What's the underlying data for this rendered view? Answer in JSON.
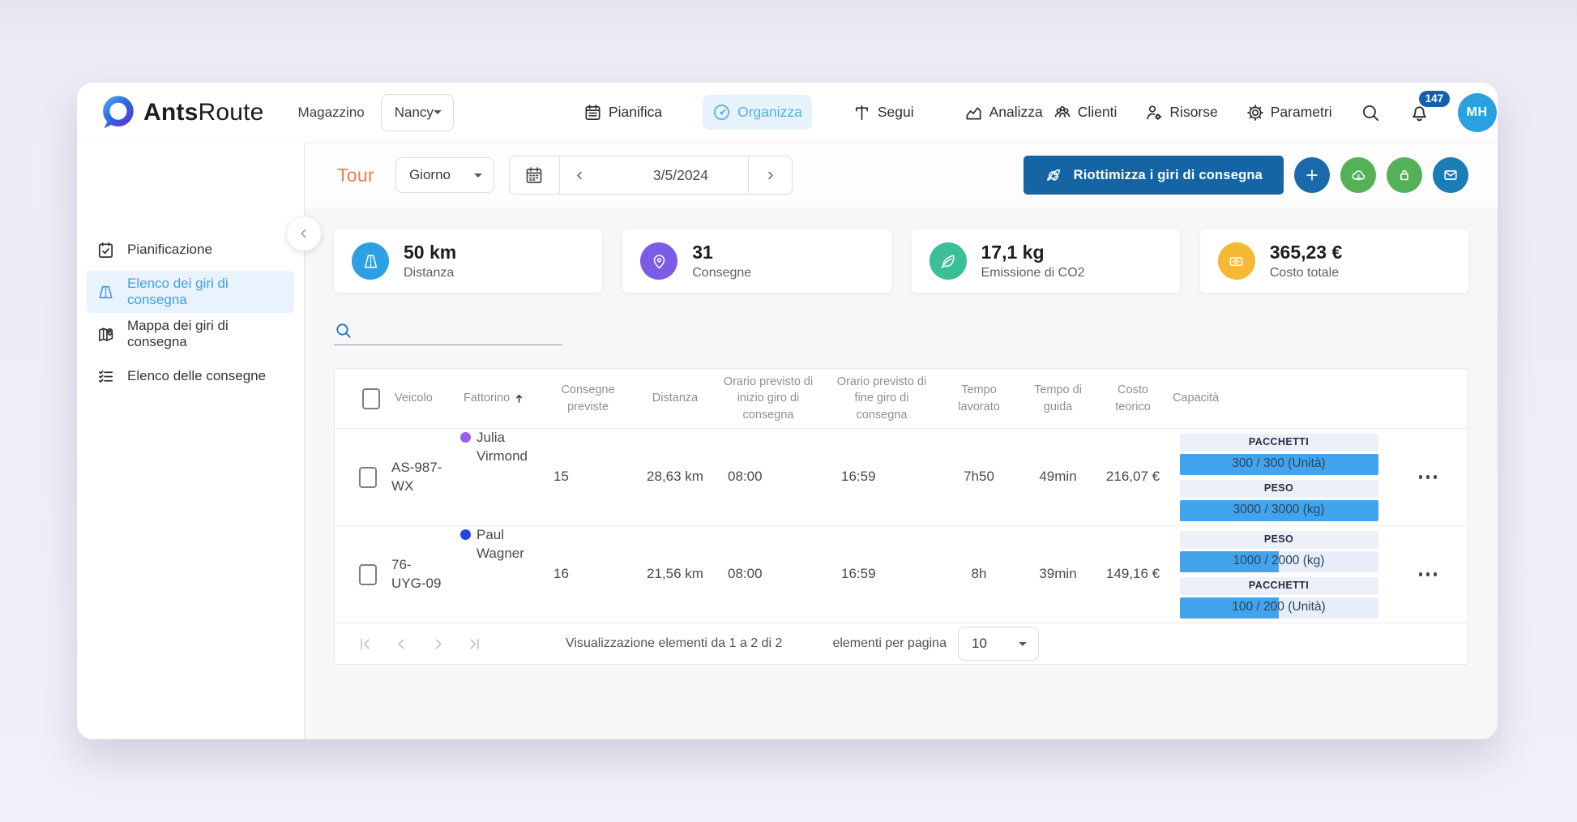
{
  "navbar": {
    "brand_bold": "Ants",
    "brand_light": "Route",
    "warehouse_label": "Magazzino",
    "warehouse_value": "Nancy",
    "tabs": [
      {
        "label": "Pianifica",
        "icon": "calendar-icon"
      },
      {
        "label": "Organizza",
        "icon": "gauge-icon",
        "active": true
      },
      {
        "label": "Segui",
        "icon": "signpost-icon"
      },
      {
        "label": "Analizza",
        "icon": "chart-icon"
      }
    ],
    "links": [
      {
        "label": "Clienti",
        "icon": "people-icon"
      },
      {
        "label": "Risorse",
        "icon": "person-gear-icon"
      },
      {
        "label": "Parametri",
        "icon": "gear-icon"
      }
    ],
    "notification_count": "147",
    "avatar_initials": "MH"
  },
  "sidebar": {
    "items": [
      {
        "label": "Pianificazione",
        "icon": "calendar-check-icon"
      },
      {
        "label": "Elenco dei giri di consegna",
        "icon": "road-icon",
        "active": true
      },
      {
        "label": "Mappa dei giri di consegna",
        "icon": "map-pin-icon"
      },
      {
        "label": "Elenco delle consegne",
        "icon": "checklist-icon"
      }
    ]
  },
  "toolbar": {
    "title": "Tour",
    "period_value": "Giorno",
    "date_value": "3/5/2024",
    "optimize_label": "Riottimizza i giri di consegna"
  },
  "stats": [
    {
      "value": "50 km",
      "label": "Distanza",
      "color": "#2d9fe3",
      "icon": "road-icon"
    },
    {
      "value": "31",
      "label": "Consegne",
      "color": "#7b5ce6",
      "icon": "location-pin-icon"
    },
    {
      "value": "17,1 kg",
      "label": "Emissione di CO2",
      "color": "#3bbf96",
      "icon": "leaf-icon"
    },
    {
      "value": "365,23 €",
      "label": "Costo totale",
      "color": "#f5b933",
      "icon": "banknote-icon"
    }
  ],
  "table": {
    "headers": {
      "vehicle": "Veicolo",
      "driver": "Fattorino",
      "deliveries": "Consegne previste",
      "distance": "Distanza",
      "start": "Orario previsto di inizio giro di consegna",
      "end": "Orario previsto di fine giro di consegna",
      "worked": "Tempo lavorato",
      "driving": "Tempo di guida",
      "cost": "Costo teorico",
      "capacity": "Capacità"
    },
    "rows": [
      {
        "vehicle": "AS-987-WX",
        "driver": "Julia Virmond",
        "driver_color": "#9561e8",
        "deliveries": "15",
        "distance": "28,63 km",
        "start": "08:00",
        "end": "16:59",
        "worked": "7h50",
        "driving": "49min",
        "cost": "216,07 €",
        "capacities": [
          {
            "label": "PACCHETTI",
            "text": "300 / 300 (Unità)",
            "fill_pct": 100
          },
          {
            "label": "PESO",
            "text": "3000 / 3000 (kg)",
            "fill_pct": 100
          }
        ]
      },
      {
        "vehicle": "76-UYG-09",
        "driver": "Paul Wagner",
        "driver_color": "#2644df",
        "deliveries": "16",
        "distance": "21,56 km",
        "start": "08:00",
        "end": "16:59",
        "worked": "8h",
        "driving": "39min",
        "cost": "149,16 €",
        "capacities": [
          {
            "label": "PESO",
            "text": "1000 / 2000 (kg)",
            "fill_pct": 50
          },
          {
            "label": "PACCHETTI",
            "text": "100 / 200 (Unità)",
            "fill_pct": 50
          }
        ]
      }
    ]
  },
  "pagination": {
    "info": "Visualizzazione elementi da 1 a 2 di 2",
    "per_page_label": "elementi per pagina",
    "per_page_value": "10"
  }
}
